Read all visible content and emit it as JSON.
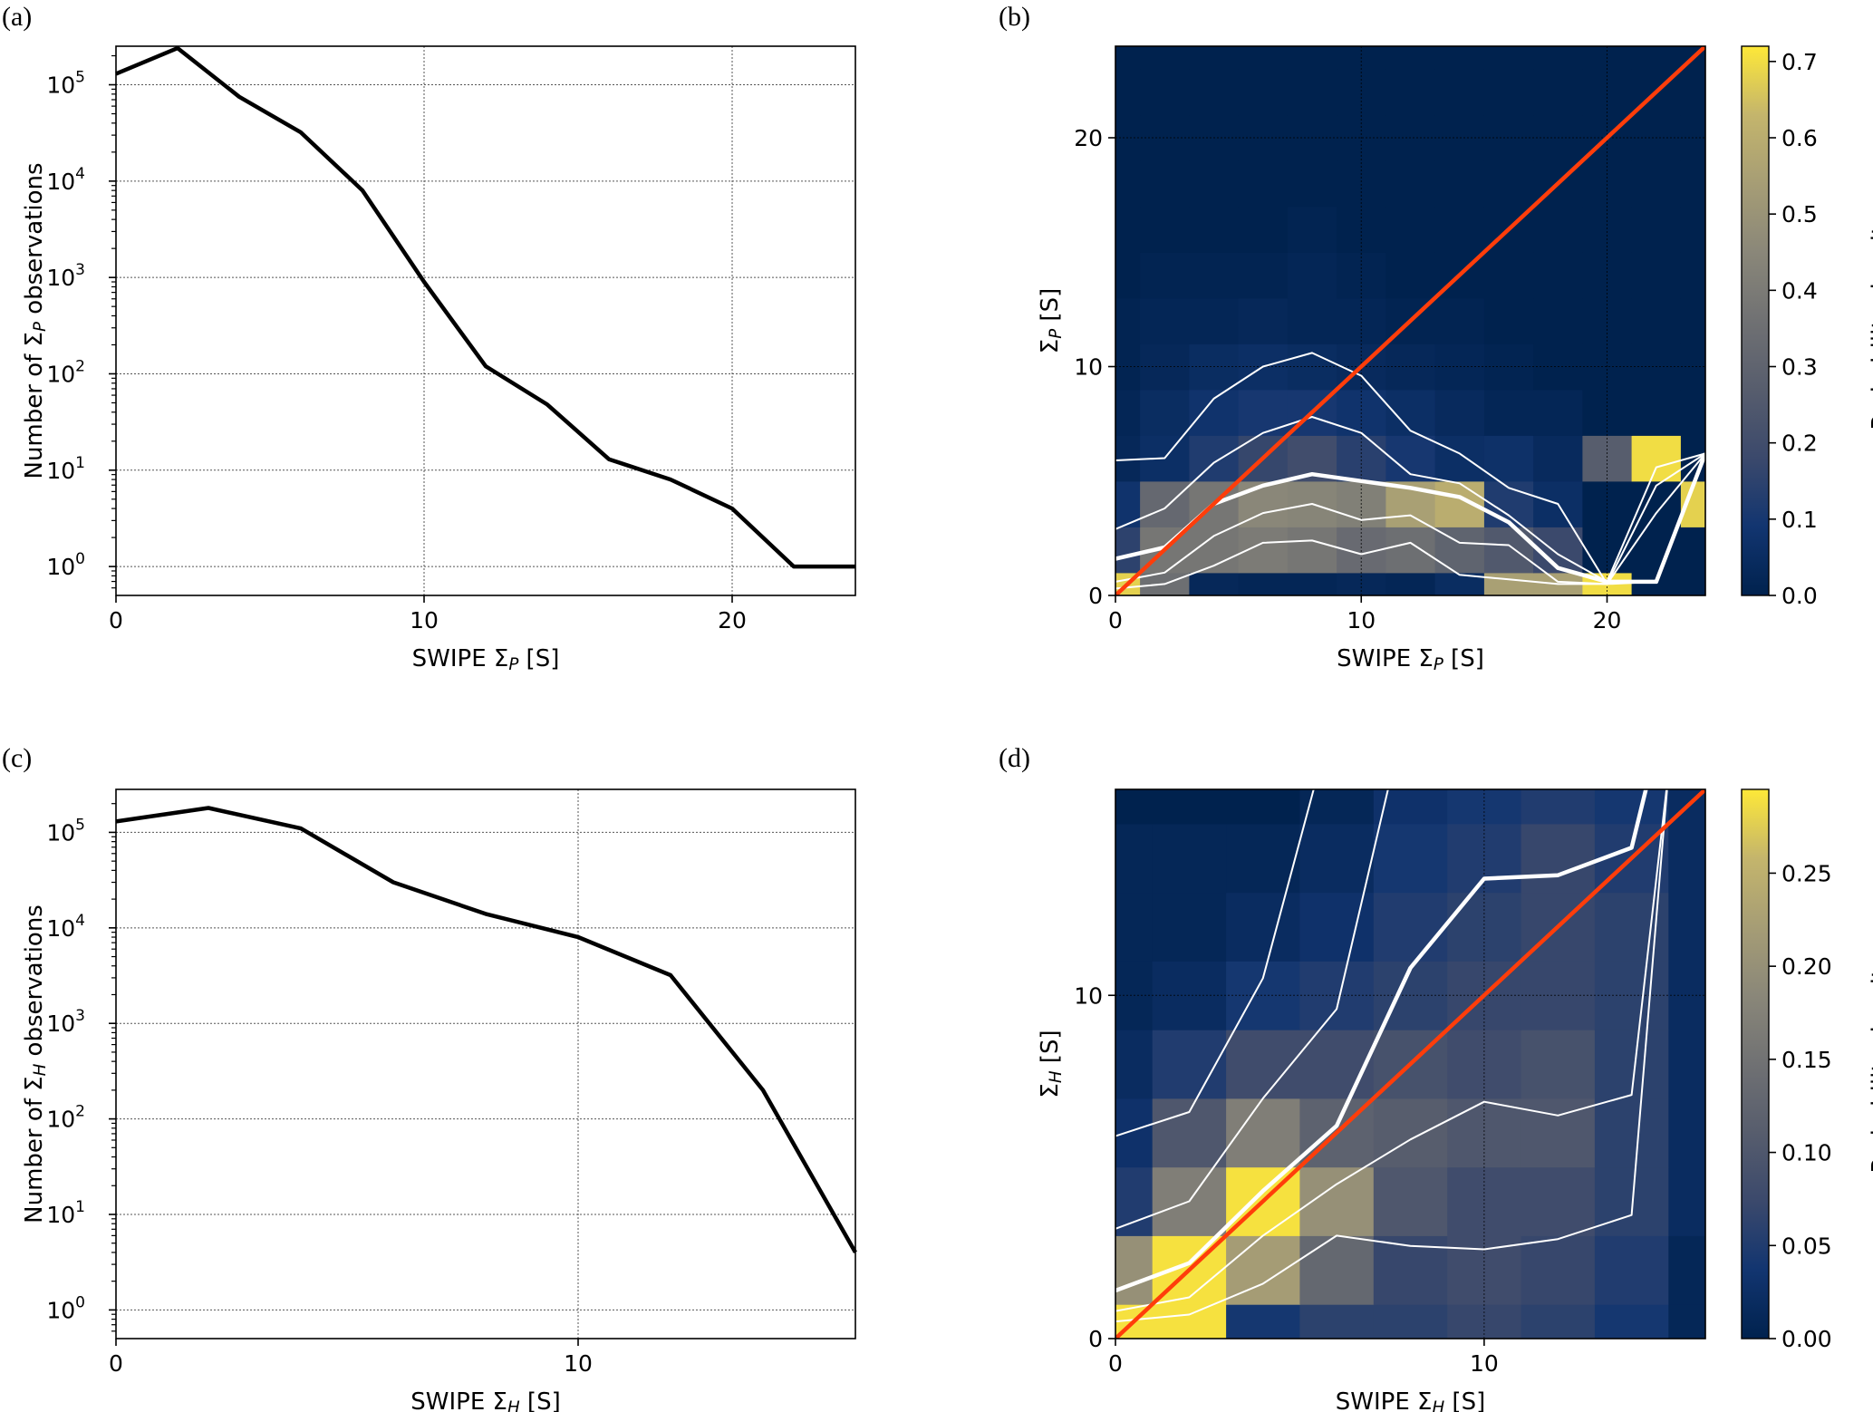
{
  "chart_data": [
    {
      "panel": "(a)",
      "type": "line",
      "xlabel": "SWIPE Σ_P [S]",
      "ylabel": "Number of Σ_P observations",
      "xlim": [
        0,
        24
      ],
      "ylim_log10": [
        -0.3,
        5.4
      ],
      "y_scale": "log",
      "xticks": [
        0,
        10,
        20
      ],
      "yticks_exp": [
        0,
        1,
        2,
        3,
        4,
        5
      ],
      "grid": true,
      "series": [
        {
          "x": [
            0,
            2,
            4,
            6,
            8,
            10,
            12,
            14,
            16,
            18,
            20,
            22,
            24
          ],
          "y": [
            130000,
            240000,
            75000,
            32000,
            8000,
            900,
            120,
            48,
            13,
            8,
            4,
            1,
            1
          ]
        }
      ]
    },
    {
      "panel": "(b)",
      "type": "heatmap",
      "xlabel": "SWIPE Σ_P [S]",
      "ylabel": "Σ_P [S]",
      "xlim": [
        0,
        24
      ],
      "ylim": [
        0,
        24
      ],
      "xticks": [
        0,
        10,
        20
      ],
      "yticks": [
        0,
        10,
        20
      ],
      "colorbar_label": "Probability density",
      "colorbar_ticks": [
        "0.0",
        "0.1",
        "0.2",
        "0.3",
        "0.4",
        "0.5",
        "0.6",
        "0.7"
      ],
      "colorbar_max": 0.72,
      "bin_x": [
        -1,
        1,
        3,
        5,
        7,
        9,
        11,
        13,
        15,
        17,
        19,
        21,
        23,
        25
      ],
      "bin_y": [
        -1,
        1,
        3,
        5,
        7,
        9,
        11,
        13,
        15,
        17,
        19,
        21,
        23,
        25
      ],
      "density": [
        [
          0.68,
          0.35,
          0.03,
          0.02,
          0.02,
          0.03,
          0.02,
          0.05,
          0.55,
          0.55,
          0.7,
          0.0,
          0.0
        ],
        [
          0.15,
          0.38,
          0.38,
          0.4,
          0.38,
          0.33,
          0.35,
          0.3,
          0.25,
          0.18,
          0.0,
          0.0,
          0.0
        ],
        [
          0.08,
          0.32,
          0.38,
          0.45,
          0.44,
          0.42,
          0.55,
          0.6,
          0.12,
          0.06,
          0.0,
          0.0,
          0.68
        ],
        [
          0.03,
          0.06,
          0.12,
          0.17,
          0.2,
          0.14,
          0.1,
          0.06,
          0.07,
          0.04,
          0.27,
          0.7,
          0.0
        ],
        [
          0.02,
          0.05,
          0.08,
          0.1,
          0.1,
          0.08,
          0.06,
          0.04,
          0.02,
          0.02,
          0.0,
          0.0,
          0.0
        ],
        [
          0.01,
          0.03,
          0.05,
          0.06,
          0.05,
          0.04,
          0.03,
          0.02,
          0.01,
          0.0,
          0.0,
          0.0,
          0.0
        ],
        [
          0.01,
          0.02,
          0.02,
          0.03,
          0.02,
          0.02,
          0.01,
          0.01,
          0.0,
          0.0,
          0.0,
          0.0,
          0.0
        ],
        [
          0.0,
          0.01,
          0.01,
          0.01,
          0.02,
          0.01,
          0.0,
          0.0,
          0.0,
          0.0,
          0.0,
          0.0,
          0.0
        ],
        [
          0.0,
          0.0,
          0.0,
          0.0,
          0.01,
          0.0,
          0.0,
          0.0,
          0.0,
          0.0,
          0.0,
          0.0,
          0.0
        ],
        [
          0,
          0,
          0,
          0,
          0,
          0,
          0,
          0,
          0,
          0,
          0,
          0,
          0
        ],
        [
          0,
          0,
          0,
          0,
          0,
          0,
          0,
          0,
          0,
          0,
          0,
          0,
          0
        ],
        [
          0,
          0,
          0,
          0,
          0,
          0,
          0,
          0,
          0,
          0,
          0,
          0,
          0
        ],
        [
          0,
          0,
          0,
          0,
          0,
          0,
          0,
          0,
          0,
          0,
          0,
          0,
          0
        ]
      ],
      "identity_line": [
        [
          0,
          0
        ],
        [
          24,
          24
        ]
      ],
      "quantile_lines": [
        {
          "width": "thin",
          "x": [
            0,
            2,
            4,
            6,
            8,
            10,
            12,
            14,
            16,
            18,
            20,
            22,
            24
          ],
          "y": [
            0.3,
            0.5,
            1.3,
            2.3,
            2.4,
            1.8,
            2.3,
            0.9,
            0.7,
            0.5,
            0.5,
            0.6,
            6.2
          ]
        },
        {
          "width": "thin",
          "x": [
            0,
            2,
            4,
            6,
            8,
            10,
            12,
            14,
            16,
            18,
            20,
            22,
            24
          ],
          "y": [
            0.6,
            1.0,
            2.6,
            3.6,
            4.0,
            3.3,
            3.5,
            2.3,
            2.2,
            0.6,
            0.5,
            3.6,
            6.2
          ]
        },
        {
          "width": "thick",
          "x": [
            0,
            2,
            4,
            6,
            8,
            10,
            12,
            14,
            16,
            18,
            20,
            22,
            24
          ],
          "y": [
            1.6,
            2.1,
            4.0,
            4.8,
            5.3,
            5.0,
            4.7,
            4.3,
            3.2,
            1.2,
            0.6,
            0.6,
            6.2
          ]
        },
        {
          "width": "thin",
          "x": [
            0,
            2,
            4,
            6,
            8,
            10,
            12,
            14,
            16,
            18,
            20,
            22,
            24
          ],
          "y": [
            2.9,
            3.8,
            5.8,
            7.1,
            7.8,
            7.1,
            5.3,
            4.9,
            3.5,
            1.8,
            0.6,
            5.6,
            6.2
          ]
        },
        {
          "width": "thin",
          "x": [
            0,
            2,
            4,
            6,
            8,
            10,
            12,
            14,
            16,
            18,
            20,
            22,
            24
          ],
          "y": [
            5.9,
            6.0,
            8.6,
            10.0,
            10.6,
            9.6,
            7.2,
            6.2,
            4.7,
            4.0,
            0.5,
            4.8,
            6.2
          ]
        }
      ]
    },
    {
      "panel": "(c)",
      "type": "line",
      "xlabel": "SWIPE Σ_H [S]",
      "ylabel": "Number of Σ_H observations",
      "xlim": [
        0,
        16
      ],
      "ylim_log10": [
        -0.3,
        5.45
      ],
      "y_scale": "log",
      "xticks": [
        0,
        10
      ],
      "yticks_exp": [
        0,
        1,
        2,
        3,
        4,
        5
      ],
      "grid": true,
      "series": [
        {
          "x": [
            0,
            2,
            4,
            6,
            8,
            10,
            12,
            14,
            16
          ],
          "y": [
            130000,
            180000,
            110000,
            30000,
            14000,
            8000,
            3200,
            200,
            4
          ]
        }
      ]
    },
    {
      "panel": "(d)",
      "type": "heatmap",
      "xlabel": "SWIPE Σ_H [S]",
      "ylabel": "Σ_H [S]",
      "xlim": [
        0,
        16
      ],
      "ylim": [
        0,
        16
      ],
      "xticks": [
        0,
        10
      ],
      "yticks": [
        0,
        10
      ],
      "colorbar_label": "Probability density",
      "colorbar_ticks": [
        "0.00",
        "0.05",
        "0.10",
        "0.15",
        "0.20",
        "0.25"
      ],
      "colorbar_max": 0.295,
      "bin_x": [
        -1,
        1,
        3,
        5,
        7,
        9,
        11,
        13,
        15,
        17
      ],
      "bin_y": [
        -1,
        1,
        3,
        5,
        7,
        9,
        11,
        13,
        15,
        17
      ],
      "density": [
        [
          0.29,
          0.29,
          0.04,
          0.06,
          0.06,
          0.07,
          0.06,
          0.04,
          0.01
        ],
        [
          0.2,
          0.29,
          0.22,
          0.13,
          0.07,
          0.08,
          0.07,
          0.05,
          0.01
        ],
        [
          0.05,
          0.17,
          0.29,
          0.2,
          0.1,
          0.08,
          0.08,
          0.06,
          0.02
        ],
        [
          0.03,
          0.1,
          0.17,
          0.12,
          0.11,
          0.1,
          0.1,
          0.06,
          0.02
        ],
        [
          0.02,
          0.05,
          0.08,
          0.08,
          0.09,
          0.08,
          0.09,
          0.06,
          0.02
        ],
        [
          0.01,
          0.02,
          0.04,
          0.05,
          0.06,
          0.07,
          0.07,
          0.06,
          0.02
        ],
        [
          0.01,
          0.01,
          0.02,
          0.03,
          0.05,
          0.06,
          0.07,
          0.06,
          0.02
        ],
        [
          0.01,
          0.01,
          0.01,
          0.02,
          0.04,
          0.05,
          0.07,
          0.05,
          0.02
        ],
        [
          0.0,
          0.0,
          0.0,
          0.01,
          0.03,
          0.04,
          0.05,
          0.04,
          0.02
        ]
      ],
      "identity_line": [
        [
          0,
          0
        ],
        [
          16,
          16
        ]
      ],
      "quantile_lines": [
        {
          "width": "thin",
          "x": [
            0,
            2,
            4,
            6,
            8,
            10,
            12,
            14,
            15
          ],
          "y": [
            0.5,
            0.7,
            1.6,
            3.0,
            2.7,
            2.6,
            2.9,
            3.6,
            16.5
          ]
        },
        {
          "width": "thin",
          "x": [
            0,
            2,
            4,
            6,
            8,
            10,
            12,
            14,
            15
          ],
          "y": [
            0.8,
            1.2,
            3.0,
            4.5,
            5.8,
            6.9,
            6.5,
            7.1,
            16.5
          ]
        },
        {
          "width": "thick",
          "x": [
            0,
            2,
            4,
            6,
            8,
            10,
            12,
            14,
            14.5
          ],
          "y": [
            1.4,
            2.2,
            4.3,
            6.2,
            10.8,
            13.4,
            13.5,
            14.3,
            16.5
          ]
        },
        {
          "width": "thin",
          "x": [
            0,
            2,
            4,
            6,
            7.5
          ],
          "y": [
            3.2,
            4.0,
            7.0,
            9.6,
            16.5
          ]
        },
        {
          "width": "thin",
          "x": [
            0,
            2,
            4,
            5.5
          ],
          "y": [
            5.9,
            6.6,
            10.5,
            16.5
          ]
        }
      ]
    }
  ]
}
